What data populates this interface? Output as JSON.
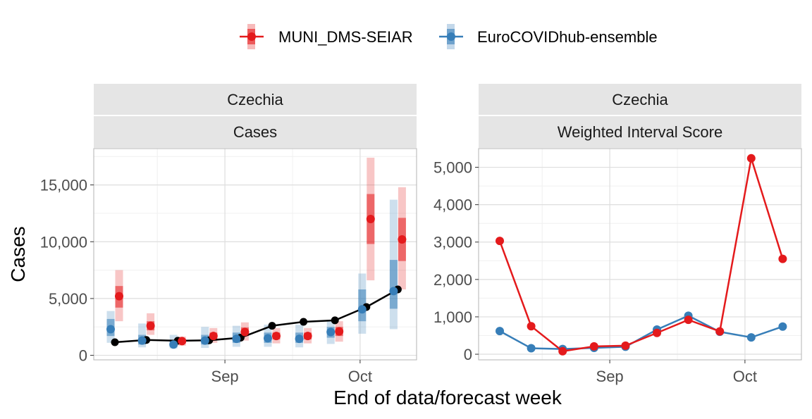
{
  "legend": {
    "items": [
      {
        "label": "MUNI_DMS-SEIAR",
        "color": "#e41a1c"
      },
      {
        "label": "EuroCOVIDhub-ensemble",
        "color": "#377eb8"
      }
    ]
  },
  "xlabel": "End of data/forecast week",
  "chart_data": [
    {
      "type": "line",
      "strip_top": "Czechia",
      "strip_bottom": "Cases",
      "ylabel": "Cases",
      "ylim": [
        -400,
        18200
      ],
      "yticks": [
        0,
        5000,
        10000,
        15000
      ],
      "ytick_labels": [
        "0",
        "5,000",
        "10,000",
        "15,000"
      ],
      "xtick_labels": [
        "Sep",
        "Oct"
      ],
      "grid": true,
      "observed": {
        "x": [
          0,
          1,
          2,
          3,
          4,
          5,
          6,
          7,
          8,
          9
        ],
        "y": [
          1150,
          1350,
          1280,
          1320,
          1550,
          2600,
          2950,
          3080,
          4250,
          5800
        ]
      },
      "forecasts": [
        {
          "name": "MUNI_DMS-SEIAR",
          "color": "#e41a1c",
          "x": [
            0,
            1,
            2,
            3,
            4,
            5,
            6,
            7,
            8,
            9
          ],
          "median": [
            5200,
            2600,
            1250,
            1700,
            2050,
            1700,
            1700,
            2100,
            12000,
            10200
          ],
          "inner": [
            [
              4200,
              6100
            ],
            [
              2200,
              3000
            ],
            [
              1050,
              1450
            ],
            [
              1450,
              2000
            ],
            [
              1700,
              2450
            ],
            [
              1400,
              2000
            ],
            [
              1400,
              2000
            ],
            [
              1700,
              2500
            ],
            [
              9800,
              14200
            ],
            [
              8300,
              12100
            ]
          ],
          "outer": [
            [
              3000,
              7500
            ],
            [
              1800,
              3700
            ],
            [
              850,
              1650
            ],
            [
              1100,
              2400
            ],
            [
              1300,
              2900
            ],
            [
              1050,
              2400
            ],
            [
              1050,
              2400
            ],
            [
              1200,
              3000
            ],
            [
              6600,
              17400
            ],
            [
              5800,
              14800
            ]
          ]
        },
        {
          "name": "EuroCOVIDhub-ensemble",
          "color": "#377eb8",
          "x": [
            0,
            1,
            2,
            3,
            4,
            5,
            6,
            7,
            8,
            9
          ],
          "median": [
            2300,
            1300,
            950,
            1300,
            1450,
            1500,
            1450,
            2050,
            4050,
            5650
          ],
          "inner": [
            [
              1700,
              3200
            ],
            [
              950,
              1800
            ],
            [
              750,
              1250
            ],
            [
              950,
              1800
            ],
            [
              1100,
              2000
            ],
            [
              1100,
              2000
            ],
            [
              1100,
              2000
            ],
            [
              1550,
              2500
            ],
            [
              3000,
              5800
            ],
            [
              4100,
              8400
            ]
          ],
          "outer": [
            [
              1100,
              3900
            ],
            [
              700,
              2800
            ],
            [
              600,
              1800
            ],
            [
              650,
              2500
            ],
            [
              750,
              2600
            ],
            [
              750,
              2700
            ],
            [
              700,
              2700
            ],
            [
              1000,
              3100
            ],
            [
              1900,
              7200
            ],
            [
              2300,
              13700
            ]
          ]
        }
      ]
    },
    {
      "type": "line",
      "strip_top": "Czechia",
      "strip_bottom": "Weighted Interval Score",
      "ylim": [
        -150,
        5500
      ],
      "yticks": [
        0,
        1000,
        2000,
        3000,
        4000,
        5000
      ],
      "ytick_labels": [
        "0",
        "1,000",
        "2,000",
        "3,000",
        "4,000",
        "5,000"
      ],
      "xtick_labels": [
        "Sep",
        "Oct"
      ],
      "grid": true,
      "series": [
        {
          "name": "MUNI_DMS-SEIAR",
          "color": "#e41a1c",
          "x": [
            0,
            1,
            2,
            3,
            4,
            5,
            6,
            7,
            8,
            9
          ],
          "values": [
            3030,
            750,
            80,
            210,
            230,
            570,
            920,
            610,
            5240,
            2550
          ]
        },
        {
          "name": "EuroCOVIDhub-ensemble",
          "color": "#377eb8",
          "x": [
            0,
            1,
            2,
            3,
            4,
            5,
            6,
            7,
            8,
            9
          ],
          "values": [
            620,
            160,
            140,
            170,
            200,
            660,
            1030,
            600,
            450,
            740
          ]
        }
      ]
    }
  ]
}
